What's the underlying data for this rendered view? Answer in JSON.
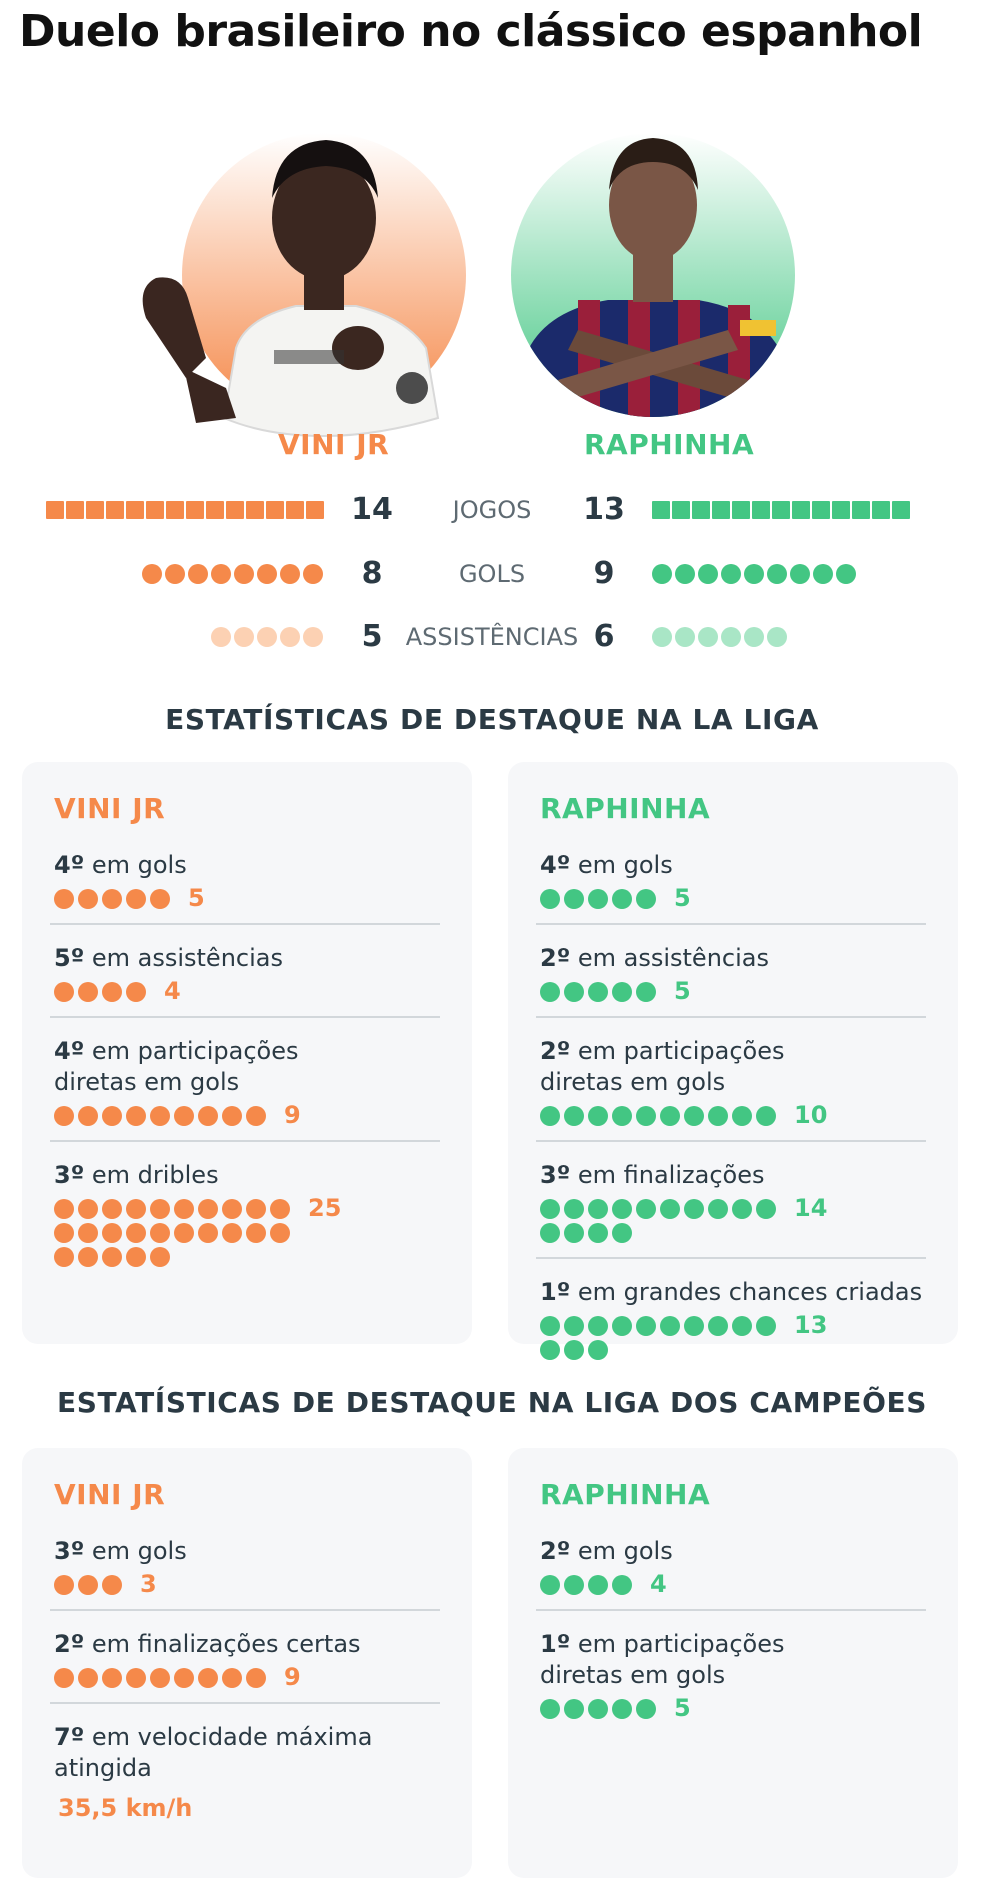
{
  "title": "Duelo brasileiro no clássico espanhol",
  "colors": {
    "vini": "#f5894a",
    "vini_light": "#fcd1b3",
    "raphinha": "#43c683",
    "raphinha_light": "#a9e6c6"
  },
  "players": {
    "vini": {
      "name": "VINI JR"
    },
    "raphinha": {
      "name": "RAPHINHA"
    }
  },
  "chart_data": {
    "type": "bar",
    "categories": [
      "JOGOS",
      "GOLS",
      "ASSISTÊNCIAS"
    ],
    "series": [
      {
        "name": "VINI JR",
        "values": [
          14,
          8,
          5
        ]
      },
      {
        "name": "RAPHINHA",
        "values": [
          13,
          9,
          6
        ]
      }
    ]
  },
  "la_liga": {
    "title": "ESTATÍSTICAS DE DESTAQUE NA LA LIGA",
    "vini": {
      "name": "VINI JR",
      "stats": [
        {
          "rank": "4º",
          "label": "em gols",
          "value": 5,
          "display": "5"
        },
        {
          "rank": "5º",
          "label": "em assistências",
          "value": 4,
          "display": "4"
        },
        {
          "rank": "4º",
          "label": "em participações diretas em gols",
          "value": 9,
          "display": "9"
        },
        {
          "rank": "3º",
          "label": "em dribles",
          "value": 25,
          "display": "25"
        }
      ]
    },
    "raphinha": {
      "name": "RAPHINHA",
      "stats": [
        {
          "rank": "4º",
          "label": "em gols",
          "value": 5,
          "display": "5"
        },
        {
          "rank": "2º",
          "label": "em assistências",
          "value": 5,
          "display": "5"
        },
        {
          "rank": "2º",
          "label": "em participações diretas em gols",
          "value": 10,
          "display": "10"
        },
        {
          "rank": "3º",
          "label": "em finalizações",
          "value": 14,
          "display": "14"
        },
        {
          "rank": "1º",
          "label": "em grandes chances criadas",
          "value": 13,
          "display": "13"
        }
      ]
    }
  },
  "champions": {
    "title": "ESTATÍSTICAS DE DESTAQUE NA LIGA DOS CAMPEÕES",
    "vini": {
      "name": "VINI JR",
      "stats": [
        {
          "rank": "3º",
          "label": "em gols",
          "value": 3,
          "display": "3"
        },
        {
          "rank": "2º",
          "label": "em finalizações certas",
          "value": 9,
          "display": "9"
        },
        {
          "rank": "7º",
          "label": "em velocidade máxima atingida",
          "value": 35.5,
          "display": "35,5 km/h"
        }
      ]
    },
    "raphinha": {
      "name": "RAPHINHA",
      "stats": [
        {
          "rank": "2º",
          "label": "em gols",
          "value": 4,
          "display": "4"
        },
        {
          "rank": "1º",
          "label": "em participações diretas em gols",
          "value": 5,
          "display": "5"
        }
      ]
    }
  }
}
